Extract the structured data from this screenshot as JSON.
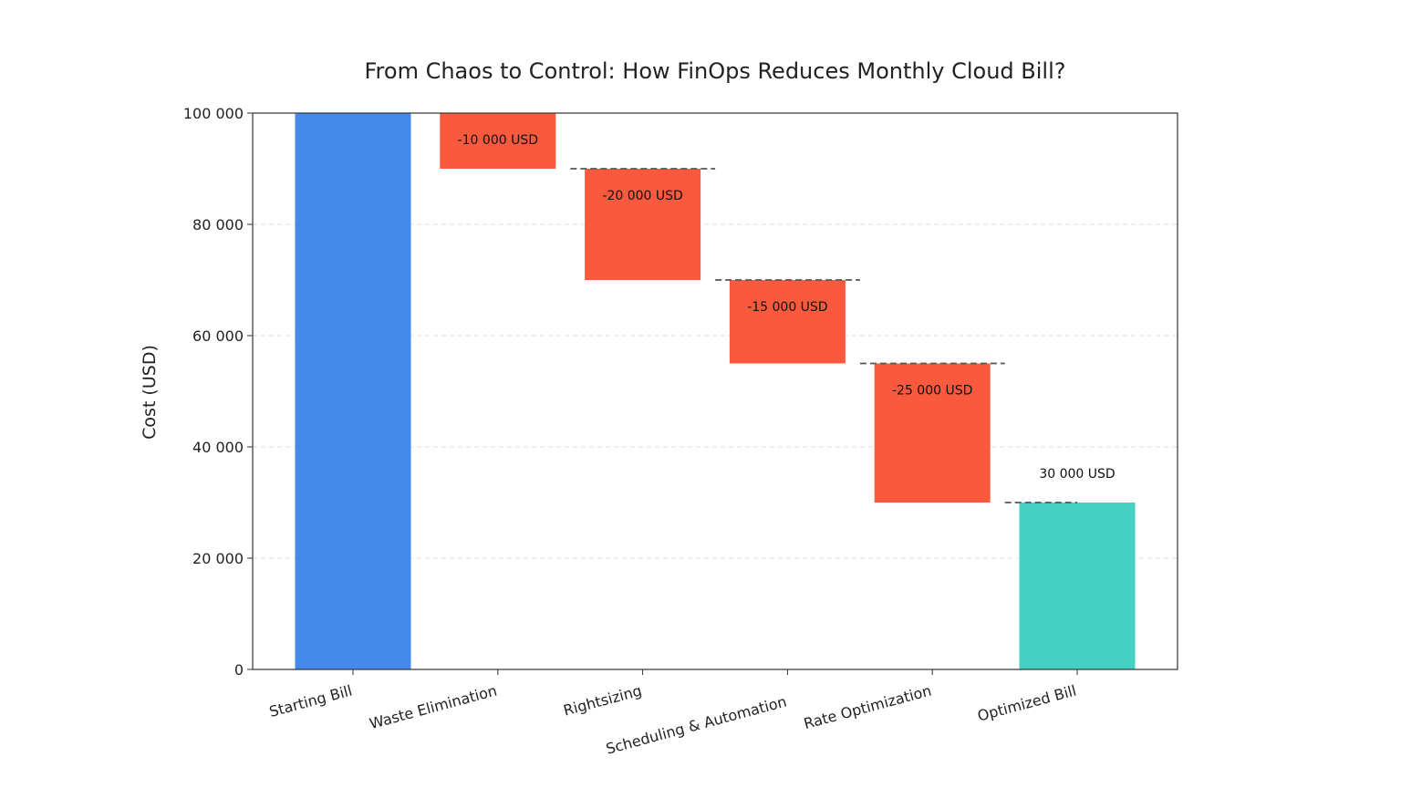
{
  "chart_data": {
    "type": "bar",
    "subtype": "waterfall",
    "title": "From Chaos to Control: How FinOps Reduces Monthly Cloud Bill?",
    "xlabel": "",
    "ylabel": "Cost (USD)",
    "ylim": [
      0,
      100000
    ],
    "yticks": [
      0,
      20000,
      40000,
      60000,
      80000,
      100000
    ],
    "ytick_labels": [
      "0",
      "20 000",
      "40 000",
      "60 000",
      "80 000",
      "100 000"
    ],
    "grid": "horizontal dashed",
    "categories": [
      "Starting Bill",
      "Waste Elimination",
      "Rightsizing",
      "Scheduling & Automation",
      "Rate Optimization",
      "Optimized Bill"
    ],
    "steps": [
      {
        "category": "Starting Bill",
        "kind": "total",
        "start": 0,
        "end": 100000,
        "label": ""
      },
      {
        "category": "Waste Elimination",
        "kind": "decrease",
        "start": 100000,
        "end": 90000,
        "label": "-10 000 USD"
      },
      {
        "category": "Rightsizing",
        "kind": "decrease",
        "start": 90000,
        "end": 70000,
        "label": "-20 000 USD"
      },
      {
        "category": "Scheduling & Automation",
        "kind": "decrease",
        "start": 70000,
        "end": 55000,
        "label": "-15 000 USD"
      },
      {
        "category": "Rate Optimization",
        "kind": "decrease",
        "start": 55000,
        "end": 30000,
        "label": "-25 000 USD"
      },
      {
        "category": "Optimized Bill",
        "kind": "total",
        "start": 0,
        "end": 30000,
        "label": "30 000 USD"
      }
    ],
    "colors": {
      "start": "#448aea",
      "decrease": "#f95a3d",
      "final": "#43d1c2",
      "connector": "#555555",
      "grid": "#dddddd",
      "axis": "#333333"
    }
  }
}
